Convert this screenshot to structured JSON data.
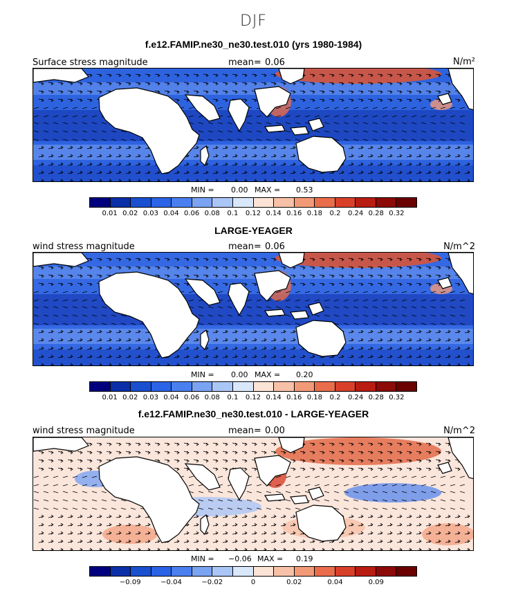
{
  "figure": {
    "season": "DJF"
  },
  "panels": [
    {
      "title": "f.e12.FAMIP.ne30_ne30.test.010 (yrs 1980-1984)",
      "variable_label": "Surface stress magnitude",
      "mean_label": "mean=",
      "mean_value": "0.06",
      "units": "N/m²",
      "min_label": "MIN =",
      "min_value": "0.00",
      "max_label": "MAX =",
      "max_value": "0.53",
      "colorbar_ticks": [
        "0.01",
        "0.02",
        "0.03",
        "0.04",
        "0.06",
        "0.08",
        "0.1",
        "0.12",
        "0.14",
        "0.16",
        "0.18",
        "0.2",
        "0.24",
        "0.28",
        "0.32"
      ],
      "field_type": "magnitude"
    },
    {
      "title": "LARGE-YEAGER",
      "variable_label": "wind stress magnitude",
      "mean_label": "mean=",
      "mean_value": "0.06",
      "units": "N/m^2",
      "min_label": "MIN =",
      "min_value": "0.00",
      "max_label": "MAX =",
      "max_value": "0.20",
      "colorbar_ticks": [
        "0.01",
        "0.02",
        "0.03",
        "0.04",
        "0.06",
        "0.08",
        "0.1",
        "0.12",
        "0.14",
        "0.16",
        "0.18",
        "0.2",
        "0.24",
        "0.28",
        "0.32"
      ],
      "field_type": "magnitude"
    },
    {
      "title": "f.e12.FAMIP.ne30_ne30.test.010 - LARGE-YEAGER",
      "variable_label": "wind stress magnitude",
      "mean_label": "mean=",
      "mean_value": "0.00",
      "units": "N/m^2",
      "min_label": "MIN =",
      "min_value": "−0.06",
      "max_label": "MAX =",
      "max_value": "0.19",
      "colorbar_ticks": [
        "−0.09",
        "−0.04",
        "−0.02",
        "0",
        "0.02",
        "0.04",
        "0.09"
      ],
      "field_type": "difference"
    }
  ],
  "colorbars": {
    "magnitude": [
      "#00007f",
      "#0b2fa8",
      "#1a4fd0",
      "#2b63e6",
      "#4a7fef",
      "#7aa3f2",
      "#aac6f6",
      "#d9e7fb",
      "#fbe3d6",
      "#f7c1a8",
      "#f29a78",
      "#ea6d4b",
      "#d8402a",
      "#b91c12",
      "#8c0a08",
      "#6a0000"
    ],
    "difference": [
      "#00007f",
      "#0b2fa8",
      "#1a4fd0",
      "#2b63e6",
      "#4a7fef",
      "#7aa3f2",
      "#aac6f6",
      "#d9e7fb",
      "#fbe3d6",
      "#f7c1a8",
      "#f29a78",
      "#ea6d4b",
      "#d8402a",
      "#b91c12",
      "#8c0a08",
      "#6a0000"
    ]
  }
}
